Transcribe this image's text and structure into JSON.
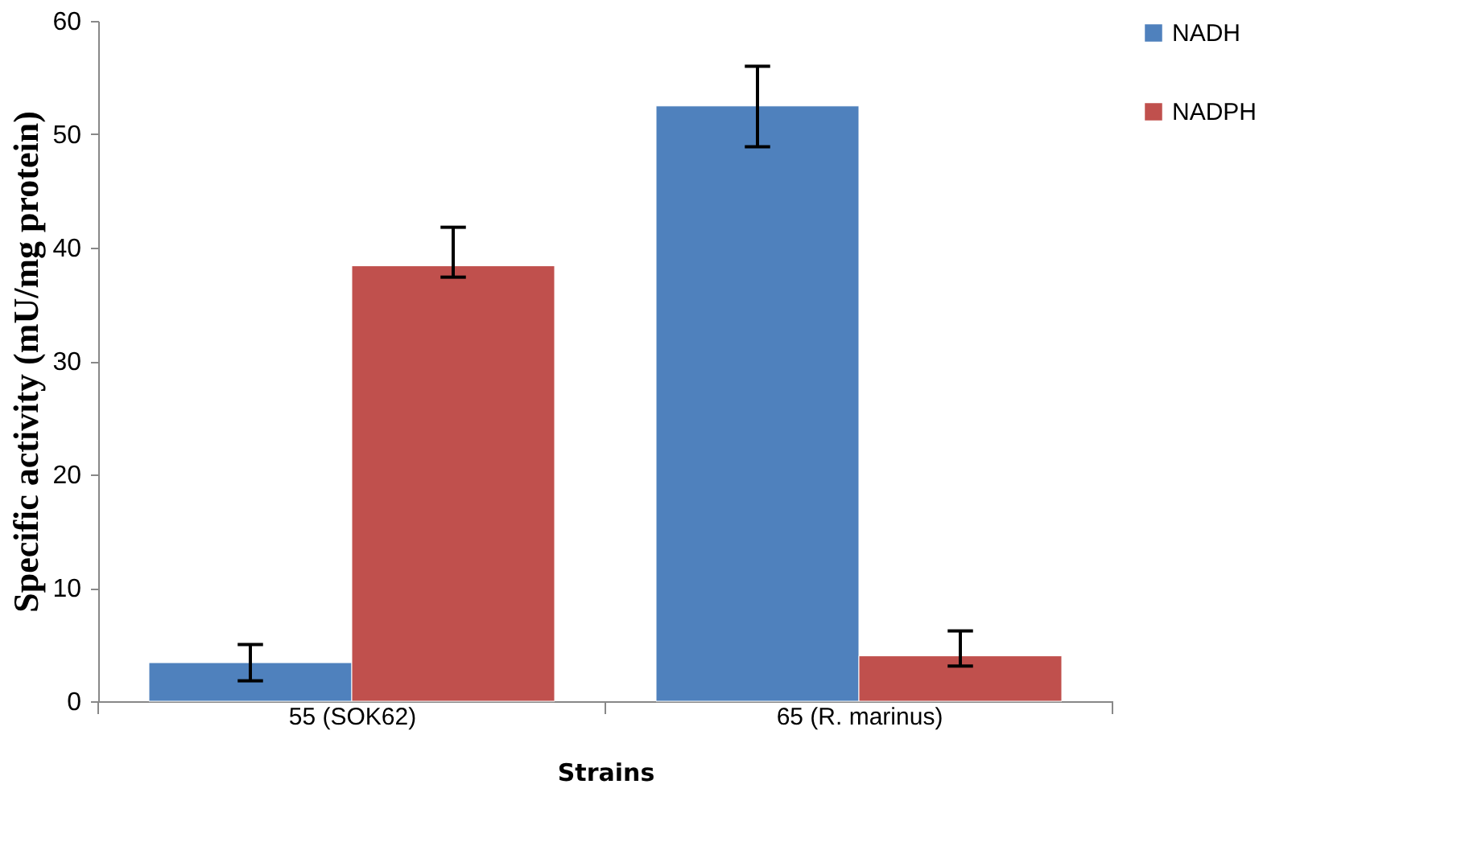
{
  "chart_data": {
    "type": "bar",
    "xlabel": "Strains",
    "ylabel": "Specific activity (mU/mg protein)",
    "categories": [
      "55 (SOK62)",
      "65 (R. marinus)"
    ],
    "series": [
      {
        "name": "NADH",
        "color": "#4f81bd",
        "values": [
          3.4,
          52.5
        ],
        "errors": [
          [
            1.8,
            5.0
          ],
          [
            48.9,
            56.0
          ]
        ]
      },
      {
        "name": "NADPH",
        "color": "#c0504d",
        "values": [
          38.4,
          4.0
        ],
        "errors": [
          [
            37.4,
            41.8
          ],
          [
            3.1,
            6.2
          ]
        ]
      }
    ],
    "ylim": [
      0,
      60
    ],
    "yticks": [
      0,
      10,
      20,
      30,
      40,
      50,
      60
    ],
    "grid": false,
    "legend": "right"
  }
}
